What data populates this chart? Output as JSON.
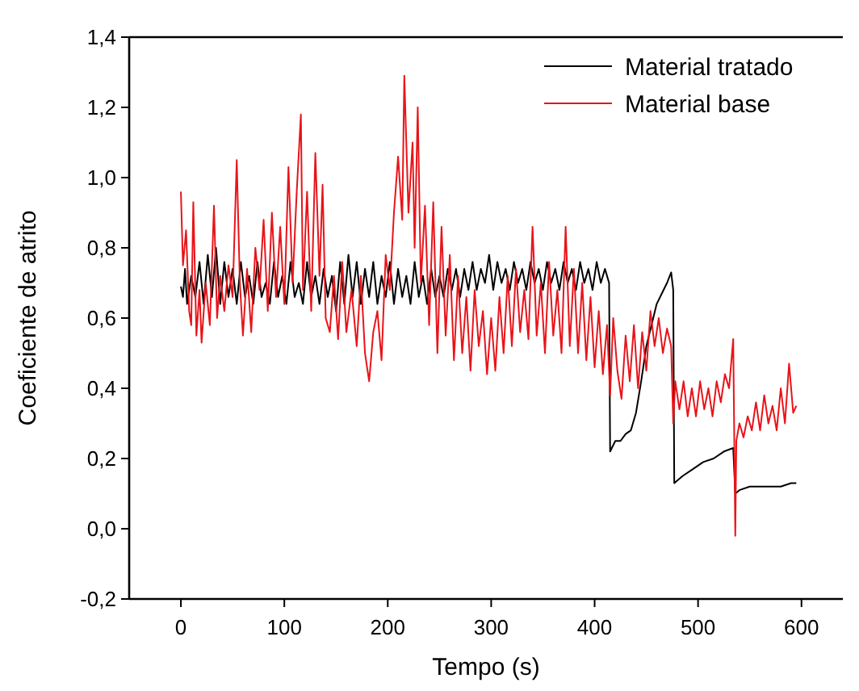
{
  "chart_data": {
    "type": "line",
    "xlabel": "Tempo (s)",
    "ylabel": "Coeficiente de atrito",
    "xlim": [
      -50,
      640
    ],
    "xticks": [
      0,
      100,
      200,
      300,
      400,
      500,
      600
    ],
    "ylim": [
      -0.2,
      1.4
    ],
    "yticks": [
      {
        "value": -0.2,
        "label": "-0,2"
      },
      {
        "value": 0,
        "label": "0,0"
      },
      {
        "value": 0.2,
        "label": "0,2"
      },
      {
        "value": 0.4,
        "label": "0,4"
      },
      {
        "value": 0.6,
        "label": "0,6"
      },
      {
        "value": 0.8,
        "label": "0,8"
      },
      {
        "value": 1.0,
        "label": "1,0"
      },
      {
        "value": 1.2,
        "label": "1,2"
      },
      {
        "value": 1.4,
        "label": "1,4"
      }
    ],
    "legend": "top right",
    "grid": false,
    "marker": "none",
    "line_style": "solid",
    "series": [
      {
        "name": "Material tratado",
        "color": "#000000",
        "x": [
          0,
          2,
          4,
          6,
          10,
          14,
          18,
          22,
          26,
          30,
          34,
          38,
          42,
          46,
          50,
          54,
          58,
          62,
          66,
          70,
          74,
          78,
          82,
          86,
          90,
          94,
          98,
          102,
          106,
          110,
          114,
          118,
          122,
          126,
          130,
          134,
          138,
          142,
          146,
          150,
          154,
          158,
          162,
          166,
          170,
          174,
          178,
          182,
          186,
          190,
          194,
          198,
          202,
          206,
          210,
          214,
          218,
          222,
          226,
          230,
          234,
          238,
          242,
          246,
          250,
          254,
          258,
          262,
          266,
          270,
          274,
          278,
          282,
          286,
          290,
          294,
          298,
          302,
          306,
          310,
          314,
          318,
          322,
          326,
          330,
          334,
          338,
          342,
          346,
          350,
          354,
          358,
          362,
          366,
          370,
          374,
          378,
          382,
          386,
          390,
          394,
          398,
          402,
          406,
          410,
          414,
          415,
          420,
          425,
          430,
          435,
          440,
          445,
          450,
          455,
          460,
          465,
          470,
          474,
          476,
          477,
          485,
          495,
          505,
          515,
          525,
          534,
          536,
          540,
          550,
          560,
          580,
          590,
          595
        ],
        "values": [
          0.69,
          0.66,
          0.74,
          0.64,
          0.72,
          0.66,
          0.76,
          0.64,
          0.78,
          0.66,
          0.8,
          0.64,
          0.76,
          0.66,
          0.74,
          0.64,
          0.76,
          0.66,
          0.72,
          0.64,
          0.76,
          0.66,
          0.7,
          0.64,
          0.76,
          0.66,
          0.72,
          0.64,
          0.76,
          0.66,
          0.7,
          0.64,
          0.76,
          0.66,
          0.72,
          0.64,
          0.74,
          0.66,
          0.72,
          0.62,
          0.76,
          0.64,
          0.78,
          0.66,
          0.76,
          0.64,
          0.74,
          0.66,
          0.76,
          0.64,
          0.72,
          0.66,
          0.76,
          0.64,
          0.74,
          0.66,
          0.72,
          0.64,
          0.76,
          0.66,
          0.72,
          0.64,
          0.74,
          0.66,
          0.72,
          0.66,
          0.74,
          0.68,
          0.74,
          0.66,
          0.74,
          0.68,
          0.76,
          0.68,
          0.74,
          0.7,
          0.78,
          0.68,
          0.76,
          0.7,
          0.74,
          0.68,
          0.76,
          0.7,
          0.74,
          0.68,
          0.76,
          0.7,
          0.74,
          0.68,
          0.76,
          0.7,
          0.74,
          0.68,
          0.76,
          0.7,
          0.74,
          0.68,
          0.76,
          0.7,
          0.74,
          0.68,
          0.76,
          0.7,
          0.74,
          0.7,
          0.22,
          0.25,
          0.25,
          0.27,
          0.28,
          0.33,
          0.42,
          0.52,
          0.58,
          0.64,
          0.67,
          0.7,
          0.73,
          0.68,
          0.13,
          0.15,
          0.17,
          0.19,
          0.2,
          0.22,
          0.23,
          0.1,
          0.11,
          0.12,
          0.12,
          0.12,
          0.13,
          0.13
        ]
      },
      {
        "name": "Material base",
        "color": "#e8141a",
        "x": [
          0,
          2,
          5,
          8,
          10,
          12,
          15,
          18,
          20,
          24,
          28,
          32,
          35,
          38,
          42,
          46,
          50,
          54,
          57,
          60,
          64,
          68,
          72,
          76,
          80,
          84,
          88,
          92,
          96,
          100,
          104,
          108,
          112,
          116,
          118,
          122,
          126,
          130,
          134,
          137,
          140,
          144,
          148,
          152,
          156,
          160,
          165,
          170,
          174,
          178,
          182,
          186,
          190,
          194,
          198,
          202,
          206,
          210,
          214,
          216,
          220,
          224,
          226,
          229,
          232,
          236,
          240,
          244,
          248,
          252,
          256,
          260,
          264,
          268,
          272,
          276,
          280,
          284,
          288,
          292,
          296,
          300,
          304,
          308,
          312,
          316,
          320,
          324,
          328,
          332,
          336,
          340,
          344,
          348,
          352,
          356,
          360,
          364,
          368,
          372,
          376,
          380,
          384,
          388,
          392,
          396,
          400,
          404,
          408,
          412,
          415,
          418,
          422,
          426,
          430,
          434,
          438,
          442,
          446,
          450,
          454,
          458,
          462,
          466,
          470,
          474,
          476,
          478,
          482,
          486,
          490,
          494,
          498,
          502,
          506,
          510,
          514,
          518,
          522,
          526,
          530,
          534,
          536,
          537,
          540,
          544,
          548,
          552,
          556,
          560,
          564,
          568,
          572,
          576,
          580,
          584,
          588,
          592,
          595
        ],
        "values": [
          0.96,
          0.75,
          0.85,
          0.62,
          0.58,
          0.93,
          0.55,
          0.68,
          0.53,
          0.7,
          0.58,
          0.92,
          0.6,
          0.72,
          0.62,
          0.75,
          0.66,
          1.05,
          0.7,
          0.55,
          0.74,
          0.56,
          0.8,
          0.68,
          0.88,
          0.62,
          0.9,
          0.66,
          0.86,
          0.64,
          1.03,
          0.7,
          0.96,
          1.18,
          0.68,
          0.96,
          0.62,
          1.07,
          0.72,
          0.98,
          0.6,
          0.56,
          0.72,
          0.54,
          0.76,
          0.56,
          0.68,
          0.52,
          0.72,
          0.5,
          0.42,
          0.56,
          0.62,
          0.48,
          0.78,
          0.68,
          0.9,
          1.06,
          0.88,
          1.29,
          0.9,
          1.1,
          0.8,
          1.2,
          0.7,
          0.92,
          0.58,
          0.93,
          0.5,
          0.86,
          0.55,
          0.78,
          0.48,
          0.72,
          0.5,
          0.66,
          0.45,
          0.68,
          0.52,
          0.62,
          0.44,
          0.6,
          0.45,
          0.66,
          0.5,
          0.72,
          0.52,
          0.74,
          0.56,
          0.68,
          0.54,
          0.86,
          0.55,
          0.7,
          0.5,
          0.76,
          0.55,
          0.68,
          0.5,
          0.86,
          0.52,
          0.74,
          0.5,
          0.7,
          0.48,
          0.66,
          0.46,
          0.62,
          0.44,
          0.58,
          0.38,
          0.6,
          0.45,
          0.37,
          0.55,
          0.42,
          0.58,
          0.4,
          0.56,
          0.45,
          0.62,
          0.52,
          0.6,
          0.5,
          0.57,
          0.52,
          0.3,
          0.42,
          0.34,
          0.42,
          0.32,
          0.4,
          0.32,
          0.42,
          0.34,
          0.4,
          0.32,
          0.42,
          0.36,
          0.44,
          0.4,
          0.54,
          -0.02,
          0.25,
          0.3,
          0.26,
          0.32,
          0.28,
          0.36,
          0.28,
          0.38,
          0.3,
          0.35,
          0.28,
          0.4,
          0.3,
          0.47,
          0.33,
          0.35
        ]
      }
    ]
  }
}
